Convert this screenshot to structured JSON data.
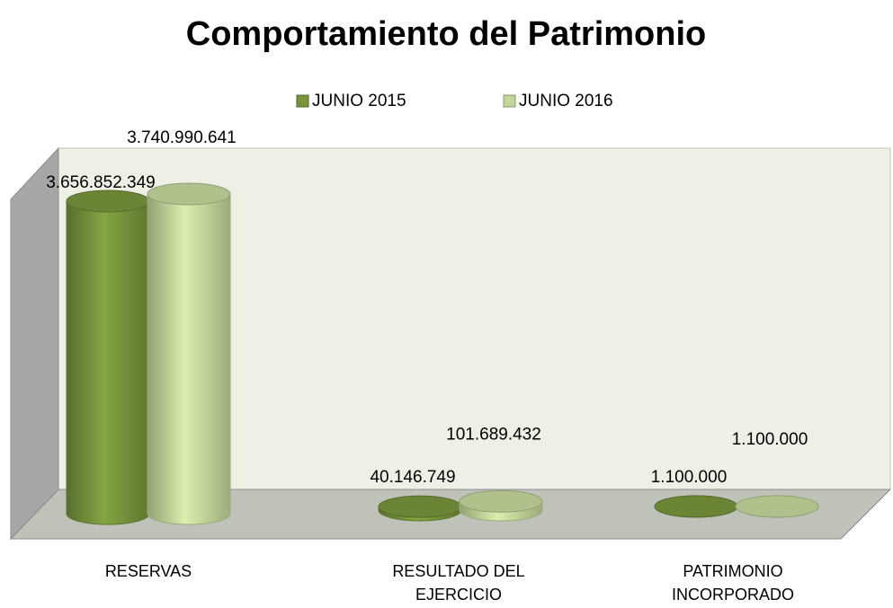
{
  "chart_data": {
    "type": "bar3d",
    "title": "Comportamiento del Patrimonio",
    "categories": [
      "RESERVAS",
      "RESULTADO DEL EJERCICIO",
      "PATRIMONIO INCORPORADO"
    ],
    "series": [
      {
        "name": "JUNIO 2015",
        "color": "#77933c",
        "values": [
          3656852349,
          40146749,
          1100000
        ],
        "value_labels": [
          "3.656.852.349",
          "40.146.749",
          "1.100.000"
        ]
      },
      {
        "name": "JUNIO 2016",
        "color": "#c3d69b",
        "values": [
          3740990641,
          101689432,
          1100000
        ],
        "value_labels": [
          "3.740.990.641",
          "101.689.432",
          "1.100.000"
        ]
      }
    ],
    "legend": "top"
  }
}
